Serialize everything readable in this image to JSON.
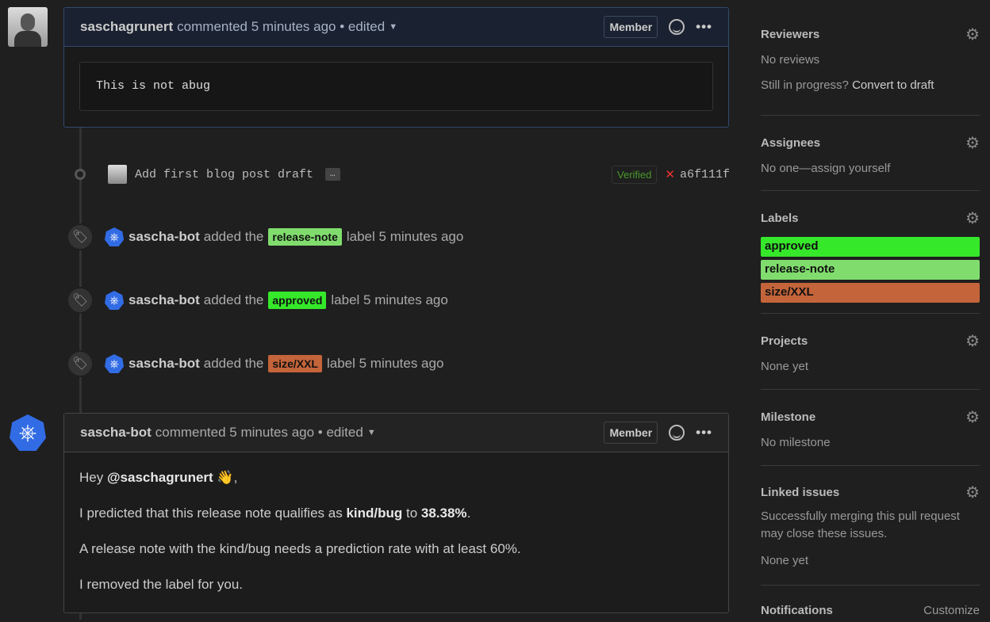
{
  "colors": {
    "approved": "#35e82a",
    "release_note": "#80dd6d",
    "size_xxl": "#c4643a",
    "verified": "#4a9a2a",
    "link_blue": "#326ce5"
  },
  "comment1": {
    "author": "saschagrunert",
    "meta": "commented 5 minutes ago • edited",
    "badge": "Member",
    "body": "This is not abug",
    "icons": [
      "smiley-icon",
      "kebab-icon"
    ]
  },
  "commit": {
    "message": "Add first blog post draft",
    "ellipsis": "…",
    "verified": "Verified",
    "status_icon": "x-icon",
    "sha": "a6f111f"
  },
  "events": [
    {
      "actor": "sascha-bot",
      "pre": "added the",
      "label": "release-note",
      "post": "label 5 minutes ago"
    },
    {
      "actor": "sascha-bot",
      "pre": "added the",
      "label": "approved",
      "post": "label 5 minutes ago"
    },
    {
      "actor": "sascha-bot",
      "pre": "added the",
      "label": "size/XXL",
      "post": "label 5 minutes ago"
    }
  ],
  "comment2": {
    "author": "sascha-bot",
    "meta": "commented 5 minutes ago • edited",
    "badge": "Member",
    "p1_pre": "Hey ",
    "p1_mention": "@saschagrunert",
    "p1_post": " 👋,",
    "p2_pre": "I predicted that this release note qualifies as ",
    "p2_kind": "kind/bug",
    "p2_mid": " to ",
    "p2_pct": "38.38%",
    "p2_post": ".",
    "p3": "A release note with the kind/bug needs a prediction rate with at least 60%.",
    "p4": "I removed the label for you."
  },
  "sidebar": {
    "reviewers": {
      "title": "Reviewers",
      "text": "No reviews",
      "draft_pre": "Still in progress? ",
      "draft_link": "Convert to draft"
    },
    "assignees": {
      "title": "Assignees",
      "text": "No one—assign yourself"
    },
    "labels": {
      "title": "Labels",
      "items": [
        "approved",
        "release-note",
        "size/XXL"
      ]
    },
    "projects": {
      "title": "Projects",
      "text": "None yet"
    },
    "milestone": {
      "title": "Milestone",
      "text": "No milestone"
    },
    "linked": {
      "title": "Linked issues",
      "text": "Successfully merging this pull request may close these issues.",
      "none": "None yet"
    },
    "notifications": {
      "title": "Notifications",
      "action": "Customize"
    }
  }
}
